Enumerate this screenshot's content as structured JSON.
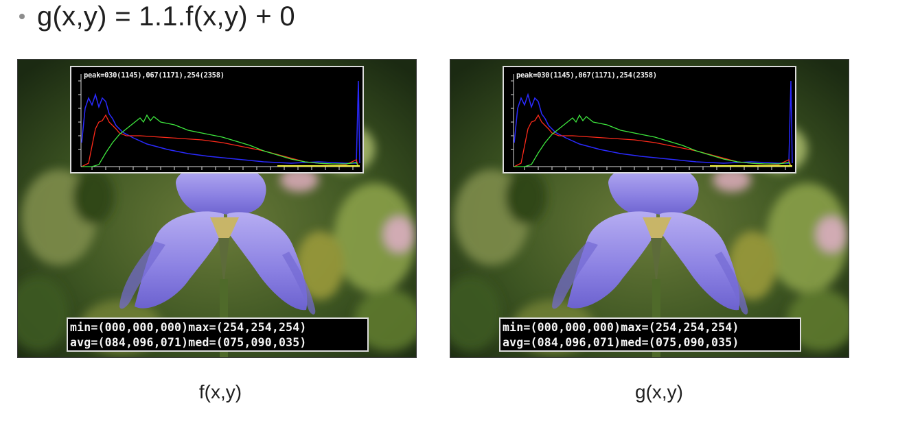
{
  "slide": {
    "formula": "g(x,y) = 1.1.f(x,y) + 0"
  },
  "panels": [
    {
      "caption": "f(x,y)",
      "histogram_peak": "peak=030(1145),067(1171),254(2358)",
      "stats_min_max": "min=(000,000,000)max=(254,254,254)",
      "stats_avg_med": "avg=(084,096,071)med=(075,090,035)"
    },
    {
      "caption": "g(x,y)",
      "histogram_peak": "peak=030(1145),067(1171),254(2358)",
      "stats_min_max": "min=(000,000,000)max=(254,254,254)",
      "stats_avg_med": "avg=(084,096,071)med=(075,090,035)"
    }
  ],
  "colors": {
    "bullet": "#8d8d8d",
    "histogram_red": "#ff2a1a",
    "histogram_green": "#3ee83e",
    "histogram_blue": "#2a2aff",
    "histogram_yellow": "#f0f03a",
    "petal": "#8e86e6",
    "foliage": "#4f6a2a"
  },
  "icons": {
    "bullet": "bullet-dot-icon"
  }
}
